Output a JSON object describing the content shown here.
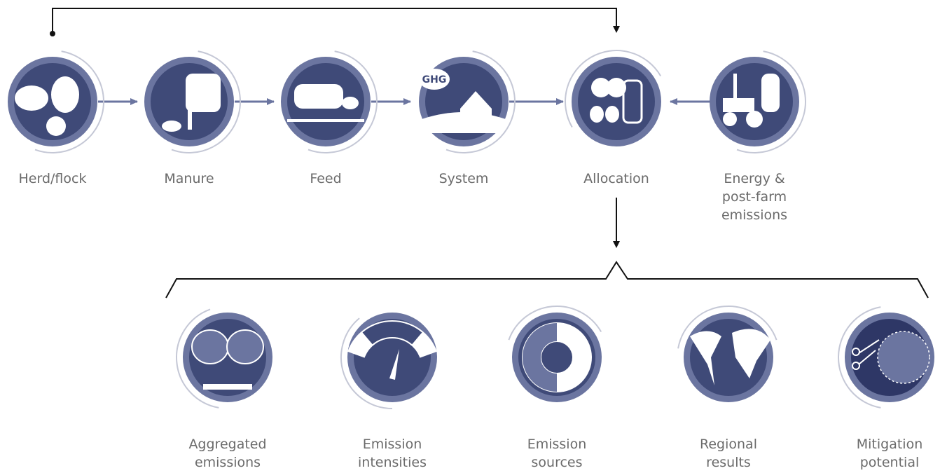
{
  "top_nodes": [
    {
      "label": [
        "Herd/flock"
      ]
    },
    {
      "label": [
        "Manure"
      ]
    },
    {
      "label": [
        "Feed"
      ]
    },
    {
      "label": [
        "System"
      ],
      "icon_text": "GHG"
    },
    {
      "label": [
        "Allocation"
      ]
    },
    {
      "label": [
        "Energy &",
        "post-farm",
        "emissions"
      ]
    }
  ],
  "bottom_nodes": [
    {
      "label": [
        "Aggregated",
        "emissions"
      ]
    },
    {
      "label": [
        "Emission",
        "intensities"
      ]
    },
    {
      "label": [
        "Emission",
        "sources"
      ]
    },
    {
      "label": [
        "Regional",
        "results"
      ]
    },
    {
      "label": [
        "Mitigation",
        "potential"
      ]
    }
  ]
}
